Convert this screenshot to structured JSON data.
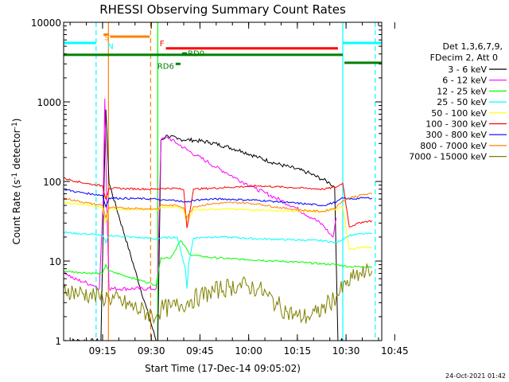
{
  "chart_data": {
    "type": "line",
    "title": "RHESSI Observing Summary Count Rates",
    "xlabel": "Start Time (17-Dec-14 09:05:02)",
    "ylabel": "Count Rate (s",
    "ylabel_sup1": "-1",
    "ylabel_mid": " detector",
    "ylabel_sup2": "-1",
    "ylabel_end": ")",
    "x_unit": "minutes after 09:05:02",
    "xlim": [
      0,
      98
    ],
    "ylim": [
      1,
      10000
    ],
    "yscale": "log",
    "x_ticks": [
      {
        "x": 12,
        "label": "09:15"
      },
      {
        "x": 27,
        "label": "09:30"
      },
      {
        "x": 42,
        "label": "09:45"
      },
      {
        "x": 57,
        "label": "10:00"
      },
      {
        "x": 72,
        "label": "10:15"
      },
      {
        "x": 87,
        "label": "10:30"
      },
      {
        "x": 102,
        "label": "10:45"
      }
    ],
    "y_ticks": [
      {
        "y": 1,
        "label": "1"
      },
      {
        "y": 10,
        "label": "10"
      },
      {
        "y": 100,
        "label": "100"
      },
      {
        "y": 1000,
        "label": "1000"
      },
      {
        "y": 10000,
        "label": "10000"
      }
    ],
    "legend_header": [
      "Det 1,3,6,7,9,",
      "FDecim 2, Att 0"
    ],
    "legend_position": "right",
    "series": [
      {
        "name": "3 - 6 keV",
        "color": "#000000",
        "x": [
          0,
          5,
          10,
          11.5,
          12.5,
          13,
          14,
          28.5,
          29,
          30,
          32,
          35,
          40,
          45,
          50,
          55,
          60,
          65,
          70,
          75,
          80,
          82,
          83.5,
          84.5,
          86
        ],
        "y": [
          1,
          1,
          1,
          1,
          110,
          800,
          95,
          1,
          1,
          330,
          380,
          340,
          330,
          310,
          275,
          240,
          200,
          170,
          150,
          130,
          105,
          95,
          85,
          1,
          1
        ]
      },
      {
        "name": "6 - 12 keV",
        "color": "#ff00ff",
        "x": [
          0,
          3,
          6,
          9,
          11,
          12.2,
          12.7,
          13.2,
          14,
          28.5,
          29,
          30,
          32,
          35,
          38,
          41,
          44,
          47,
          50,
          53,
          56,
          59,
          62,
          65,
          68,
          71,
          74,
          77,
          80,
          82,
          83,
          84
        ],
        "y": [
          7.5,
          6,
          5.5,
          5,
          4.5,
          60,
          1100,
          80,
          4.5,
          4.5,
          7,
          330,
          360,
          300,
          250,
          210,
          180,
          150,
          130,
          110,
          95,
          82,
          72,
          63,
          55,
          48,
          40,
          34,
          28,
          22,
          20,
          35
        ]
      },
      {
        "name": "12 - 25 keV",
        "color": "#00ff00",
        "x": [
          0,
          5,
          10,
          12,
          13,
          14,
          28.5,
          29,
          30,
          33,
          36,
          37,
          39,
          42,
          46,
          50,
          55,
          60,
          65,
          70,
          75,
          80,
          84,
          88,
          92,
          95
        ],
        "y": [
          7.5,
          7.2,
          7,
          7,
          9,
          7.5,
          5,
          6.5,
          11,
          11,
          18,
          16,
          12,
          11.5,
          11,
          10.8,
          10.5,
          10.3,
          10,
          9.8,
          9.5,
          9.2,
          9,
          8.5,
          8.5,
          8.5
        ]
      },
      {
        "name": "25 - 50 keV",
        "color": "#00ffff",
        "x": [
          0,
          5,
          10,
          12,
          13,
          14,
          28.5,
          29,
          30,
          35,
          37.5,
          38,
          38.5,
          40,
          45,
          50,
          55,
          60,
          65,
          70,
          75,
          80,
          84,
          88,
          92,
          95
        ],
        "y": [
          23,
          22,
          21.5,
          21,
          17,
          21,
          19,
          19,
          19.5,
          20,
          8,
          4.5,
          9,
          19.5,
          20,
          20,
          19.5,
          19,
          18.8,
          18.5,
          18.3,
          18,
          17,
          21,
          22,
          22
        ]
      },
      {
        "name": "50 - 100 keV",
        "color": "#ffff00",
        "x": [
          0,
          4,
          8,
          12,
          13,
          14,
          28.5,
          29,
          30,
          35,
          37,
          38,
          40,
          45,
          50,
          55,
          60,
          65,
          70,
          75,
          80,
          84,
          86,
          88,
          92,
          95
        ],
        "y": [
          55,
          52,
          50,
          47,
          30,
          45,
          44,
          44,
          47,
          48,
          44,
          30,
          44,
          45,
          45,
          44,
          44,
          43,
          42,
          42,
          42,
          44,
          48,
          14,
          15,
          15
        ]
      },
      {
        "name": "100 - 300 keV",
        "color": "#ff0000",
        "x": [
          0,
          4,
          8,
          12,
          13,
          14,
          28.5,
          29,
          30,
          35,
          37,
          38,
          40,
          45,
          50,
          55,
          60,
          65,
          70,
          75,
          80,
          84,
          86,
          88,
          92,
          95
        ],
        "y": [
          110,
          100,
          93,
          88,
          60,
          82,
          80,
          80,
          82,
          82,
          78,
          26,
          80,
          82,
          84,
          86,
          88,
          86,
          84,
          82,
          80,
          85,
          95,
          27,
          31,
          32
        ]
      },
      {
        "name": "300 - 800 keV",
        "color": "#0000ff",
        "x": [
          0,
          4,
          8,
          12,
          13,
          14,
          28.5,
          29,
          30,
          35,
          37,
          38,
          40,
          45,
          50,
          55,
          60,
          65,
          70,
          75,
          80,
          84,
          86,
          88,
          92,
          95
        ],
        "y": [
          80,
          74,
          70,
          67,
          48,
          62,
          60,
          60,
          58,
          58,
          55,
          55,
          58,
          60,
          60,
          59,
          58,
          56,
          54,
          52,
          50,
          55,
          62,
          60,
          62,
          62
        ]
      },
      {
        "name": "800 - 7000 keV",
        "color": "#ff8000",
        "x": [
          0,
          4,
          8,
          12,
          13,
          14,
          28.5,
          29,
          30,
          35,
          37,
          38,
          40,
          45,
          50,
          55,
          60,
          65,
          70,
          75,
          80,
          84,
          86,
          88,
          92,
          95
        ],
        "y": [
          62,
          57,
          53,
          50,
          35,
          47,
          45,
          45,
          50,
          50,
          47,
          35,
          48,
          52,
          54,
          54,
          52,
          48,
          45,
          43,
          42,
          47,
          58,
          62,
          68,
          70
        ]
      },
      {
        "name": "7000 - 15000 keV",
        "color": "#808000",
        "x": [
          0,
          4,
          8,
          11,
          12,
          14,
          28.5,
          29,
          30,
          33,
          36,
          39,
          42,
          45,
          48,
          51,
          54,
          57,
          60,
          63,
          66,
          69,
          72,
          75,
          78,
          81,
          84,
          87,
          90,
          93,
          95
        ],
        "y": [
          4.5,
          4,
          3.8,
          3.5,
          3.5,
          3.5,
          2,
          2.2,
          2.5,
          2.6,
          2.8,
          3.2,
          3.6,
          4,
          4.4,
          4.7,
          5,
          4.8,
          4.5,
          3.6,
          2.8,
          2.3,
          2,
          2,
          2.2,
          2.8,
          3.6,
          5,
          6.5,
          7,
          7.5
        ]
      }
    ],
    "status_flags": [
      {
        "label": "",
        "color": "#00ffff",
        "segments": [
          [
            0,
            10
          ],
          [
            86,
            98
          ]
        ],
        "y": 5500
      },
      {
        "label": "S",
        "color": "#ff8000",
        "segments": [
          [
            12.3,
            14
          ]
        ],
        "y": 7000
      },
      {
        "label": "N",
        "color": "#00ffff",
        "segments": [],
        "y": 5200
      },
      {
        "label": "",
        "color": "#ff8000",
        "segments": [
          [
            14.3,
            26.5
          ]
        ],
        "y": 6600
      },
      {
        "label": "F",
        "color": "#ff0000",
        "segments": [
          [
            31.5,
            84.5
          ]
        ],
        "y": 4700
      },
      {
        "label": "",
        "color": "#008000",
        "segments": [
          [
            0,
            86
          ]
        ],
        "y": 3900
      },
      {
        "label": "",
        "color": "#008000",
        "segments": [
          [
            86.5,
            98
          ]
        ],
        "y": 3100
      },
      {
        "label": "RD0",
        "color": "#008000",
        "segments": [
          [
            36.5,
            38
          ]
        ],
        "y": 4050
      },
      {
        "label": "RD6",
        "color": "#008000",
        "segments": [
          [
            34.5,
            36
          ]
        ],
        "y": 3000
      }
    ],
    "vertical_lines": [
      {
        "x": 10,
        "color": "#00ffff",
        "style": "dashed"
      },
      {
        "x": 13.8,
        "color": "#ff8000",
        "style": "solid"
      },
      {
        "x": 26.8,
        "color": "#ff8000",
        "style": "dashed"
      },
      {
        "x": 29,
        "color": "#00ff00",
        "style": "solid"
      },
      {
        "x": 86,
        "color": "#00ffff",
        "style": "solid"
      },
      {
        "x": 96,
        "color": "#00ffff",
        "style": "dashed"
      }
    ]
  },
  "footer": {
    "timestamp": "24-Oct-2021 01:42"
  }
}
